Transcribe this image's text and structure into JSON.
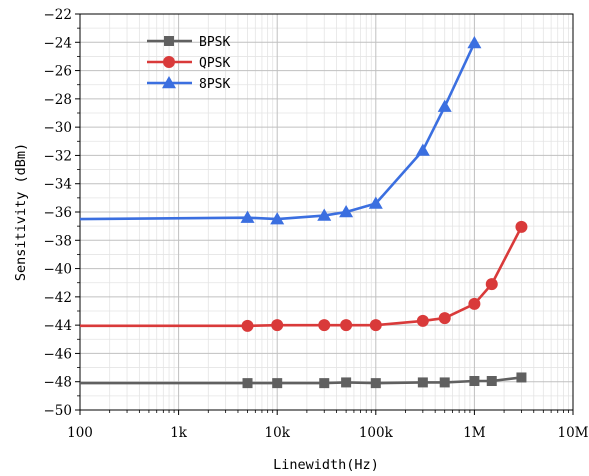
{
  "chart_data": {
    "type": "line",
    "xlabel": "Linewidth(Hz)",
    "ylabel": "Sensitivity (dBm)",
    "xscale": "log",
    "xlim": [
      100,
      10000000
    ],
    "ylim": [
      -50,
      -22
    ],
    "x_ticks": [
      {
        "value": 100,
        "label": "100"
      },
      {
        "value": 1000,
        "label": "1k"
      },
      {
        "value": 10000,
        "label": "10k"
      },
      {
        "value": 100000,
        "label": "100k"
      },
      {
        "value": 1000000,
        "label": "1M"
      },
      {
        "value": 10000000,
        "label": "10M"
      }
    ],
    "y_ticks": [
      {
        "value": -22,
        "label": "−22"
      },
      {
        "value": -24,
        "label": "−24"
      },
      {
        "value": -26,
        "label": "−26"
      },
      {
        "value": -28,
        "label": "−28"
      },
      {
        "value": -30,
        "label": "−30"
      },
      {
        "value": -32,
        "label": "−32"
      },
      {
        "value": -34,
        "label": "−34"
      },
      {
        "value": -36,
        "label": "−36"
      },
      {
        "value": -38,
        "label": "−38"
      },
      {
        "value": -40,
        "label": "−40"
      },
      {
        "value": -42,
        "label": "−42"
      },
      {
        "value": -44,
        "label": "−44"
      },
      {
        "value": -46,
        "label": "−46"
      },
      {
        "value": -48,
        "label": "−48"
      },
      {
        "value": -50,
        "label": "−50"
      }
    ],
    "grid": true,
    "legend_position": "top-left",
    "series": [
      {
        "name": "BPSK",
        "color": "#606060",
        "marker": "square",
        "line_x": [
          100,
          5000,
          10000,
          30000,
          50000,
          100000,
          300000,
          500000,
          1000000,
          1500000,
          3000000
        ],
        "line_y": [
          -48.1,
          -48.1,
          -48.1,
          -48.1,
          -48.05,
          -48.1,
          -48.05,
          -48.05,
          -47.95,
          -47.95,
          -47.7
        ],
        "x": [
          5000,
          10000,
          30000,
          50000,
          100000,
          300000,
          500000,
          1000000,
          1500000,
          3000000
        ],
        "y": [
          -48.1,
          -48.1,
          -48.1,
          -48.05,
          -48.1,
          -48.05,
          -48.05,
          -47.95,
          -47.95,
          -47.7
        ]
      },
      {
        "name": "QPSK",
        "color": "#d93a3a",
        "marker": "circle",
        "line_x": [
          100,
          5000,
          10000,
          30000,
          50000,
          100000,
          300000,
          500000,
          1000000,
          1500000,
          3000000
        ],
        "line_y": [
          -44.05,
          -44.05,
          -44.0,
          -44.0,
          -44.0,
          -44.0,
          -43.7,
          -43.5,
          -42.5,
          -41.1,
          -37.05
        ],
        "x": [
          5000,
          10000,
          30000,
          50000,
          100000,
          300000,
          500000,
          1000000,
          1500000,
          3000000
        ],
        "y": [
          -44.05,
          -44.0,
          -44.0,
          -44.0,
          -44.0,
          -43.7,
          -43.5,
          -42.5,
          -41.1,
          -37.05
        ]
      },
      {
        "name": "8PSK",
        "color": "#3b6fe0",
        "marker": "triangle",
        "line_x": [
          100,
          5000,
          10000,
          30000,
          50000,
          100000,
          300000,
          500000,
          1000000
        ],
        "line_y": [
          -36.5,
          -36.4,
          -36.5,
          -36.25,
          -36.0,
          -35.4,
          -31.65,
          -28.55,
          -24.05
        ],
        "x": [
          5000,
          10000,
          30000,
          50000,
          100000,
          300000,
          500000,
          1000000
        ],
        "y": [
          -36.4,
          -36.5,
          -36.25,
          -36.0,
          -35.4,
          -31.65,
          -28.55,
          -24.05
        ]
      }
    ]
  }
}
